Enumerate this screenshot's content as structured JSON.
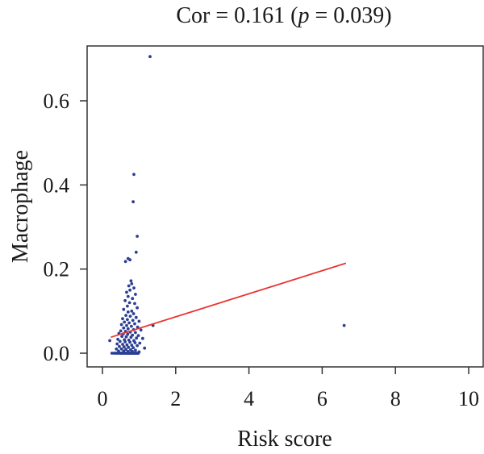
{
  "chart_data": {
    "type": "scatter",
    "title_prefix": "Cor = 0.161 (",
    "title_pvar": "p",
    "title_suffix": " = 0.039)",
    "xlabel": "Risk score",
    "ylabel": "Macrophage",
    "xlim": [
      0,
      10
    ],
    "ylim": [
      -0.03,
      0.71
    ],
    "xticks": [
      0,
      2,
      4,
      6,
      8,
      10
    ],
    "yticks": [
      0.0,
      0.2,
      0.4,
      0.6
    ],
    "xtick_labels": [
      "0",
      "2",
      "4",
      "6",
      "8",
      "10"
    ],
    "ytick_labels": [
      "0.0",
      "0.2",
      "0.4",
      "0.6"
    ],
    "grid": false,
    "point_color": "#2b3f93",
    "line_color": "#e8342f",
    "trend_line": {
      "x": [
        0.23,
        6.65
      ],
      "y": [
        0.038,
        0.214
      ]
    },
    "points": [
      [
        1.3,
        0.705
      ],
      [
        0.86,
        0.425
      ],
      [
        0.84,
        0.36
      ],
      [
        0.95,
        0.278
      ],
      [
        0.92,
        0.24
      ],
      [
        0.7,
        0.225
      ],
      [
        0.75,
        0.222
      ],
      [
        0.63,
        0.218
      ],
      [
        6.6,
        0.066
      ],
      [
        1.38,
        0.066
      ],
      [
        0.78,
        0.172
      ],
      [
        0.8,
        0.165
      ],
      [
        0.72,
        0.16
      ],
      [
        0.86,
        0.155
      ],
      [
        0.75,
        0.15
      ],
      [
        0.66,
        0.145
      ],
      [
        0.9,
        0.14
      ],
      [
        0.7,
        0.135
      ],
      [
        0.82,
        0.13
      ],
      [
        0.62,
        0.125
      ],
      [
        0.74,
        0.12
      ],
      [
        0.88,
        0.118
      ],
      [
        0.68,
        0.112
      ],
      [
        0.95,
        0.108
      ],
      [
        0.58,
        0.104
      ],
      [
        0.8,
        0.1
      ],
      [
        0.7,
        0.098
      ],
      [
        0.85,
        0.094
      ],
      [
        0.64,
        0.09
      ],
      [
        0.76,
        0.088
      ],
      [
        0.92,
        0.085
      ],
      [
        0.55,
        0.082
      ],
      [
        0.68,
        0.08
      ],
      [
        0.83,
        0.078
      ],
      [
        1.0,
        0.076
      ],
      [
        0.6,
        0.074
      ],
      [
        0.73,
        0.072
      ],
      [
        0.88,
        0.07
      ],
      [
        0.52,
        0.068
      ],
      [
        0.66,
        0.066
      ],
      [
        0.79,
        0.064
      ],
      [
        0.96,
        0.062
      ],
      [
        0.58,
        0.06
      ],
      [
        0.7,
        0.058
      ],
      [
        0.85,
        0.056
      ],
      [
        1.05,
        0.055
      ],
      [
        0.5,
        0.053
      ],
      [
        0.63,
        0.052
      ],
      [
        0.76,
        0.05
      ],
      [
        0.9,
        0.049
      ],
      [
        0.45,
        0.047
      ],
      [
        0.57,
        0.046
      ],
      [
        0.69,
        0.045
      ],
      [
        0.82,
        0.043
      ],
      [
        0.98,
        0.042
      ],
      [
        0.53,
        0.04
      ],
      [
        0.65,
        0.039
      ],
      [
        0.78,
        0.038
      ],
      [
        0.93,
        0.036
      ],
      [
        1.1,
        0.035
      ],
      [
        0.42,
        0.033
      ],
      [
        0.6,
        0.032
      ],
      [
        0.72,
        0.031
      ],
      [
        0.86,
        0.03
      ],
      [
        0.2,
        0.03
      ],
      [
        0.48,
        0.028
      ],
      [
        0.62,
        0.027
      ],
      [
        0.75,
        0.026
      ],
      [
        0.89,
        0.025
      ],
      [
        1.02,
        0.024
      ],
      [
        0.4,
        0.022
      ],
      [
        0.55,
        0.021
      ],
      [
        0.67,
        0.02
      ],
      [
        0.8,
        0.019
      ],
      [
        0.95,
        0.018
      ],
      [
        0.46,
        0.016
      ],
      [
        0.59,
        0.015
      ],
      [
        0.71,
        0.014
      ],
      [
        0.84,
        0.013
      ],
      [
        1.15,
        0.012
      ],
      [
        0.38,
        0.01
      ],
      [
        0.52,
        0.01
      ],
      [
        0.64,
        0.009
      ],
      [
        0.77,
        0.008
      ],
      [
        0.9,
        0.007
      ],
      [
        0.44,
        0.005
      ],
      [
        0.58,
        0.005
      ],
      [
        0.7,
        0.004
      ],
      [
        0.82,
        0.004
      ],
      [
        1.0,
        0.003
      ],
      [
        0.26,
        0.0
      ],
      [
        0.32,
        0.0
      ],
      [
        0.36,
        0.0
      ],
      [
        0.4,
        0.0
      ],
      [
        0.44,
        0.0
      ],
      [
        0.48,
        0.0
      ],
      [
        0.52,
        0.0
      ],
      [
        0.56,
        0.0
      ],
      [
        0.6,
        0.0
      ],
      [
        0.64,
        0.0
      ],
      [
        0.68,
        0.0
      ],
      [
        0.72,
        0.0
      ],
      [
        0.76,
        0.0
      ],
      [
        0.8,
        0.0
      ],
      [
        0.84,
        0.0
      ],
      [
        0.88,
        0.0
      ],
      [
        0.92,
        0.0
      ],
      [
        0.96,
        0.0
      ],
      [
        0.98,
        0.0
      ],
      [
        0.62,
        0.0
      ],
      [
        0.74,
        0.0
      ],
      [
        0.86,
        0.0
      ],
      [
        0.5,
        0.0
      ],
      [
        0.66,
        0.0
      ],
      [
        0.78,
        0.0
      ],
      [
        0.9,
        0.0
      ],
      [
        0.54,
        0.0
      ],
      [
        0.7,
        0.0
      ],
      [
        0.82,
        0.0
      ],
      [
        0.94,
        0.0
      ]
    ]
  }
}
